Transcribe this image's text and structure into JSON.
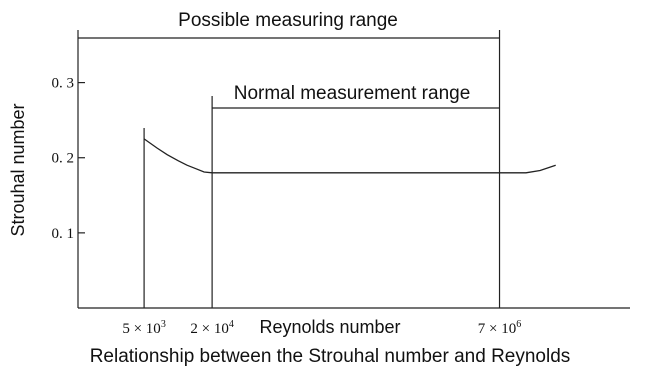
{
  "chart_data": {
    "type": "line",
    "title": "",
    "caption": "Relationship between the Strouhal number and Reynolds",
    "xlabel": "Reynolds number",
    "ylabel": "Strouhal number",
    "y_ticks": [
      "0. 1",
      "0. 2",
      "0. 3"
    ],
    "y_tick_values": [
      0.1,
      0.2,
      0.3
    ],
    "ylim": [
      0,
      0.37
    ],
    "x_tick_labels": [
      {
        "base": "5 × 10",
        "exp": "3",
        "value": 5000
      },
      {
        "base": "2 × 10",
        "exp": "4",
        "value": 20000
      },
      {
        "base": "7 × 10",
        "exp": "6",
        "value": 7000000
      }
    ],
    "x_scale": "log",
    "xlim": [
      1300,
      100000000
    ],
    "ranges": [
      {
        "label": "Possible measuring range",
        "from": 5000,
        "to": 7000000
      },
      {
        "label": "Normal measurement range",
        "from": 20000,
        "to": 7000000
      }
    ],
    "series": [
      {
        "x": [
          5000,
          6500,
          8000,
          10000,
          12000,
          14000,
          17000,
          20000,
          100000,
          1000000,
          7000000,
          12000000,
          16000000,
          22000000
        ],
        "y": [
          0.225,
          0.213,
          0.204,
          0.196,
          0.19,
          0.186,
          0.181,
          0.18,
          0.18,
          0.18,
          0.18,
          0.18,
          0.183,
          0.19
        ]
      }
    ],
    "grid": false
  }
}
